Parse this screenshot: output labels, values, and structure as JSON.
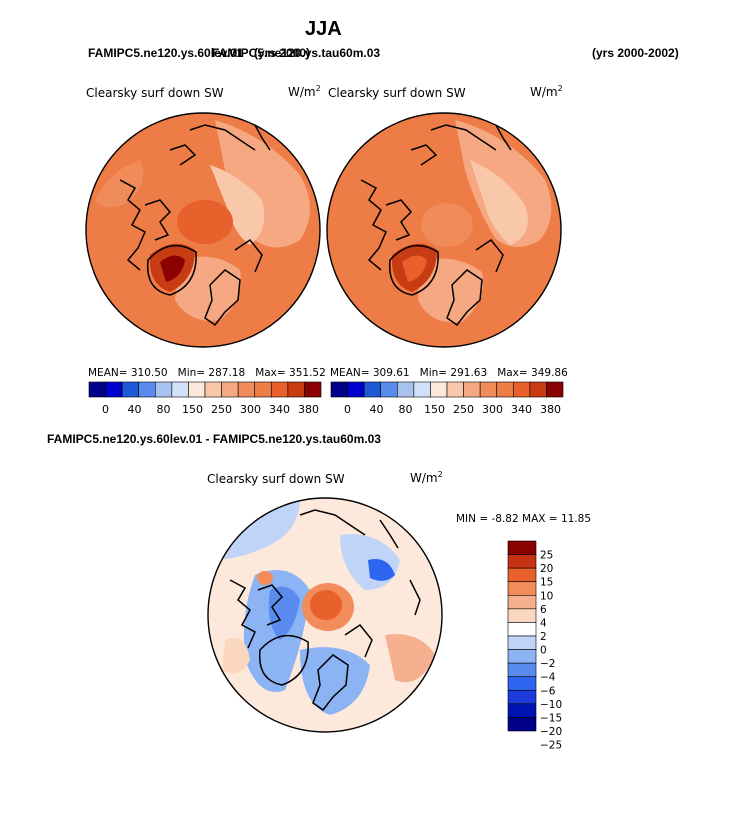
{
  "page": {
    "title": "JJA",
    "case_left": "FAMIPC5.ne120.ys.60lev.01",
    "case_mid_overlap": "FAMIPC5.ne120.ys.tau60m.03",
    "case_overlap_text": "(yrs 2000)",
    "years": "(yrs 2000-2002)",
    "diff_title": "FAMIPC5.ne120.ys.60lev.01 - FAMIPC5.ne120.ys.tau60m.03"
  },
  "colors": {
    "seq": [
      "#00008b",
      "#0000cd",
      "#1e5ad6",
      "#5a8cf0",
      "#a8c2f0",
      "#d2e0fa",
      "#fde9dc",
      "#f9c8aa",
      "#f6a882",
      "#f08c5a",
      "#ee7c46",
      "#e8602c",
      "#c83c14",
      "#8b0000"
    ],
    "div": [
      "#00008b",
      "#0014b4",
      "#1e3cdc",
      "#2d64f0",
      "#5a8cf0",
      "#8cb4f5",
      "#c0d4f8",
      "#ffffff",
      "#fbd7c0",
      "#f6b090",
      "#f28c5a",
      "#e8602c",
      "#c83214",
      "#8b0000"
    ]
  },
  "chart_data": [
    {
      "type": "heatmap",
      "name": "model_case",
      "projection": "north-polar-stereographic",
      "title": "Clearsky surf down SW",
      "units": "W/m",
      "units_sup": "2",
      "stats": {
        "mean_label": "MEAN=",
        "mean": "310.50",
        "min_label": "Min=",
        "min": "287.18",
        "max_label": "Max=",
        "max": "351.52"
      },
      "colorbar_labels": [
        "0",
        "40",
        "80",
        "150",
        "250",
        "300",
        "340",
        "380"
      ]
    },
    {
      "type": "heatmap",
      "name": "control_case",
      "projection": "north-polar-stereographic",
      "title": "Clearsky surf down SW",
      "units": "W/m",
      "units_sup": "2",
      "stats": {
        "mean_label": "MEAN=",
        "mean": "309.61",
        "min_label": "Min=",
        "min": "291.63",
        "max_label": "Max=",
        "max": "349.86"
      },
      "colorbar_labels": [
        "0",
        "40",
        "80",
        "150",
        "250",
        "300",
        "340",
        "380"
      ]
    },
    {
      "type": "heatmap",
      "name": "difference",
      "projection": "north-polar-stereographic",
      "title": "Clearsky surf down SW",
      "units": "W/m",
      "units_sup": "2",
      "stats": {
        "min_label": "MIN =",
        "min": "-8.82",
        "max_label": "MAX =",
        "max": "11.85"
      },
      "colorbar_labels": [
        "25",
        "20",
        "15",
        "10",
        "6",
        "4",
        "2",
        "0",
        "−2",
        "−4",
        "−6",
        "−10",
        "−15",
        "−20",
        "−25"
      ]
    }
  ]
}
